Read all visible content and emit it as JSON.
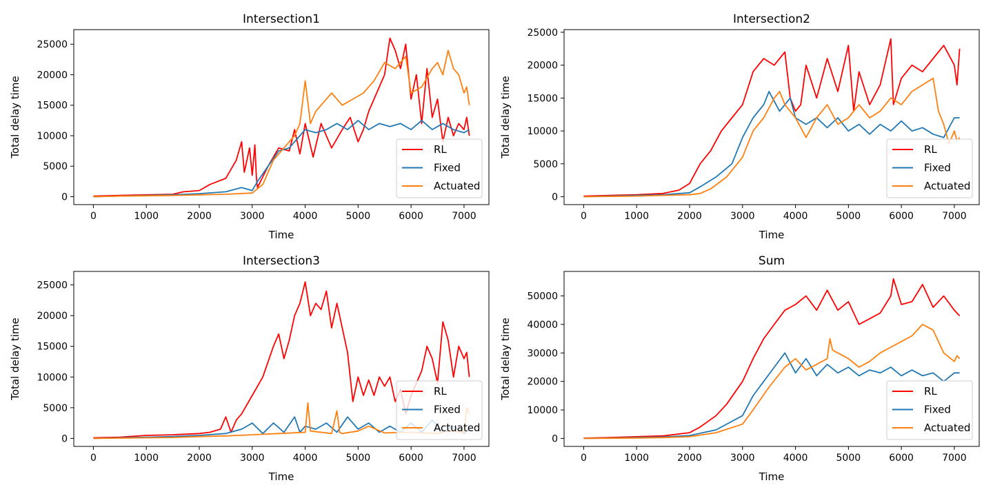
{
  "colors": {
    "RL": "#ff0000",
    "Fixed": "#1f77b4",
    "Actuated": "#ff7f0e"
  },
  "chart_data": [
    {
      "type": "line",
      "title": "Intersection1",
      "xlabel": "Time",
      "ylabel": "Total delay time",
      "xlim": [
        -370,
        7470
      ],
      "ylim": [
        -1300,
        27400
      ],
      "xticks": [
        0,
        1000,
        2000,
        3000,
        4000,
        5000,
        6000,
        7000
      ],
      "yticks": [
        0,
        5000,
        10000,
        15000,
        20000,
        25000
      ],
      "grid": false,
      "legend": "lower-right",
      "series": [
        {
          "name": "RL",
          "color": "#ff0000",
          "x": [
            0,
            500,
            1000,
            1500,
            1700,
            2000,
            2200,
            2500,
            2700,
            2800,
            2850,
            2950,
            3000,
            3050,
            3080,
            3100,
            3300,
            3500,
            3700,
            3800,
            3900,
            4000,
            4150,
            4300,
            4500,
            4700,
            4850,
            5000,
            5100,
            5200,
            5300,
            5500,
            5600,
            5700,
            5800,
            5900,
            6000,
            6100,
            6200,
            6300,
            6400,
            6500,
            6600,
            6700,
            6800,
            6900,
            7000,
            7050,
            7100
          ],
          "y": [
            100,
            200,
            300,
            400,
            800,
            1000,
            2000,
            3000,
            6000,
            9000,
            4000,
            8000,
            3500,
            8500,
            3000,
            1500,
            5000,
            8000,
            7500,
            11000,
            7000,
            12000,
            6500,
            12000,
            8000,
            11000,
            13000,
            9000,
            11000,
            14000,
            16000,
            20000,
            26000,
            24000,
            21000,
            25000,
            16000,
            20000,
            12000,
            21000,
            13000,
            16000,
            9000,
            13000,
            10000,
            12000,
            11000,
            13000,
            10000
          ]
        },
        {
          "name": "Fixed",
          "color": "#1f77b4",
          "x": [
            0,
            500,
            1000,
            1500,
            2000,
            2500,
            2800,
            3000,
            3100,
            3300,
            3500,
            3700,
            3900,
            4000,
            4200,
            4400,
            4600,
            4800,
            5000,
            5200,
            5400,
            5600,
            5800,
            6000,
            6200,
            6400,
            6600,
            6800,
            7000,
            7100
          ],
          "y": [
            0,
            100,
            200,
            300,
            500,
            800,
            1500,
            1000,
            2500,
            5000,
            7500,
            8000,
            10000,
            11000,
            10500,
            11000,
            12000,
            11000,
            12500,
            11000,
            12000,
            11500,
            12000,
            11000,
            12500,
            11000,
            12000,
            11000,
            10500,
            11000
          ]
        },
        {
          "name": "Actuated",
          "color": "#ff7f0e",
          "x": [
            0,
            500,
            1000,
            1500,
            2000,
            2500,
            3000,
            3200,
            3400,
            3600,
            3800,
            3900,
            4000,
            4100,
            4200,
            4300,
            4500,
            4700,
            4900,
            5100,
            5300,
            5500,
            5700,
            5900,
            6000,
            6200,
            6400,
            6500,
            6600,
            6700,
            6800,
            6900,
            7000,
            7050,
            7100
          ],
          "y": [
            0,
            100,
            150,
            200,
            300,
            400,
            600,
            2000,
            6000,
            8000,
            10000,
            12000,
            19000,
            12000,
            14000,
            15000,
            17000,
            15000,
            16000,
            17000,
            19000,
            22000,
            21000,
            23000,
            17000,
            18000,
            21000,
            22000,
            20000,
            24000,
            21000,
            20000,
            17000,
            18000,
            15000
          ]
        }
      ]
    },
    {
      "type": "line",
      "title": "Intersection2",
      "xlabel": "Time",
      "ylabel": "Total delay time",
      "xlim": [
        -370,
        7470
      ],
      "ylim": [
        -1200,
        25400
      ],
      "xticks": [
        0,
        1000,
        2000,
        3000,
        4000,
        5000,
        6000,
        7000
      ],
      "yticks": [
        0,
        5000,
        10000,
        15000,
        20000,
        25000
      ],
      "grid": false,
      "legend": "lower-right",
      "series": [
        {
          "name": "RL",
          "color": "#ff0000",
          "x": [
            0,
            500,
            1000,
            1500,
            1800,
            2000,
            2200,
            2400,
            2600,
            2800,
            3000,
            3200,
            3400,
            3600,
            3800,
            3900,
            4000,
            4100,
            4200,
            4400,
            4600,
            4800,
            5000,
            5100,
            5200,
            5400,
            5600,
            5800,
            5850,
            6000,
            6200,
            6400,
            6600,
            6800,
            7000,
            7050,
            7100
          ],
          "y": [
            100,
            200,
            300,
            500,
            1000,
            2000,
            5000,
            7000,
            10000,
            12000,
            14000,
            19000,
            21000,
            20000,
            22000,
            15000,
            13000,
            14000,
            20000,
            15000,
            21000,
            16000,
            23000,
            13000,
            19000,
            14000,
            17000,
            24000,
            14000,
            18000,
            20000,
            19000,
            21000,
            23000,
            20000,
            17000,
            22500
          ]
        },
        {
          "name": "Fixed",
          "color": "#1f77b4",
          "x": [
            0,
            500,
            1000,
            1500,
            2000,
            2200,
            2500,
            2800,
            3000,
            3200,
            3400,
            3500,
            3700,
            3900,
            4000,
            4200,
            4400,
            4600,
            4800,
            5000,
            5200,
            5400,
            5600,
            5800,
            6000,
            6200,
            6400,
            6600,
            6800,
            7000,
            7100
          ],
          "y": [
            0,
            100,
            200,
            300,
            600,
            1500,
            3000,
            5000,
            9000,
            12000,
            14000,
            16000,
            13000,
            15000,
            12000,
            11000,
            12000,
            10500,
            12000,
            10000,
            11000,
            9500,
            11000,
            10000,
            11500,
            10000,
            10500,
            9500,
            9000,
            12000,
            12000
          ]
        },
        {
          "name": "Actuated",
          "color": "#ff7f0e",
          "x": [
            0,
            500,
            1000,
            1500,
            2000,
            2200,
            2400,
            2700,
            3000,
            3200,
            3400,
            3600,
            3700,
            3800,
            4000,
            4200,
            4400,
            4600,
            4800,
            5000,
            5200,
            5400,
            5600,
            5800,
            6000,
            6200,
            6400,
            6600,
            6700,
            6800,
            6900,
            7000,
            7050,
            7100
          ],
          "y": [
            0,
            50,
            100,
            200,
            300,
            500,
            1200,
            3000,
            6000,
            10000,
            12000,
            15000,
            16000,
            14000,
            12000,
            9000,
            12000,
            14000,
            11000,
            12000,
            14000,
            12000,
            13000,
            15000,
            14000,
            16000,
            17000,
            18000,
            13000,
            11000,
            8000,
            10000,
            8500,
            9000
          ]
        }
      ]
    },
    {
      "type": "line",
      "title": "Intersection3",
      "xlabel": "Time",
      "ylabel": "Total delay time",
      "xlim": [
        -370,
        7470
      ],
      "ylim": [
        -1300,
        27200
      ],
      "xticks": [
        0,
        1000,
        2000,
        3000,
        4000,
        5000,
        6000,
        7000
      ],
      "yticks": [
        0,
        5000,
        10000,
        15000,
        20000,
        25000
      ],
      "grid": false,
      "legend": "lower-right",
      "series": [
        {
          "name": "RL",
          "color": "#ff0000",
          "x": [
            0,
            500,
            1000,
            1500,
            2000,
            2200,
            2400,
            2500,
            2600,
            2700,
            2800,
            3000,
            3200,
            3400,
            3500,
            3600,
            3700,
            3800,
            3900,
            4000,
            4100,
            4200,
            4300,
            4400,
            4500,
            4600,
            4800,
            4900,
            5000,
            5100,
            5200,
            5300,
            5400,
            5500,
            5600,
            5700,
            5800,
            5900,
            6000,
            6200,
            6300,
            6400,
            6500,
            6600,
            6700,
            6800,
            6900,
            7000,
            7050,
            7100
          ],
          "y": [
            100,
            200,
            500,
            600,
            800,
            1000,
            1500,
            3500,
            1000,
            3000,
            4000,
            7000,
            10000,
            15000,
            17000,
            13000,
            16000,
            20000,
            22000,
            25500,
            20000,
            22000,
            21000,
            24000,
            18000,
            22000,
            14000,
            6000,
            10000,
            7000,
            9500,
            7000,
            10000,
            8500,
            10000,
            6000,
            8000,
            4000,
            7000,
            11000,
            15000,
            13000,
            9000,
            19000,
            16000,
            10000,
            15000,
            13000,
            14000,
            10000
          ]
        },
        {
          "name": "Fixed",
          "color": "#1f77b4",
          "x": [
            0,
            500,
            1000,
            1500,
            2000,
            2500,
            2800,
            3000,
            3200,
            3400,
            3600,
            3800,
            3900,
            4000,
            4200,
            4400,
            4600,
            4800,
            5000,
            5200,
            5400,
            5600,
            5800,
            6000,
            6200,
            6400,
            6600,
            6800,
            7000,
            7100
          ],
          "y": [
            0,
            100,
            200,
            300,
            500,
            800,
            1500,
            2500,
            800,
            2500,
            1000,
            3500,
            1000,
            2000,
            1500,
            2500,
            1000,
            3500,
            1500,
            2500,
            1000,
            2000,
            1000,
            2500,
            1000,
            3000,
            1000,
            2000,
            800,
            1500
          ]
        },
        {
          "name": "Actuated",
          "color": "#ff7f0e",
          "x": [
            0,
            500,
            1000,
            1500,
            2000,
            2500,
            3000,
            3500,
            4000,
            4050,
            4100,
            4500,
            4600,
            4650,
            4700,
            5000,
            5200,
            5500,
            6000,
            6500,
            6700,
            7000,
            7050,
            7100
          ],
          "y": [
            0,
            50,
            100,
            150,
            300,
            400,
            600,
            800,
            1000,
            5800,
            1200,
            800,
            4500,
            1000,
            800,
            1200,
            2000,
            900,
            1000,
            800,
            1200,
            1000,
            5000,
            4000
          ]
        }
      ]
    },
    {
      "type": "line",
      "title": "Sum",
      "xlabel": "Time",
      "ylabel": "Total delay time",
      "xlim": [
        -370,
        7470
      ],
      "ylim": [
        -2800,
        58600
      ],
      "xticks": [
        0,
        1000,
        2000,
        3000,
        4000,
        5000,
        6000,
        7000
      ],
      "yticks": [
        0,
        10000,
        20000,
        30000,
        40000,
        50000
      ],
      "grid": false,
      "legend": "lower-right",
      "series": [
        {
          "name": "RL",
          "color": "#ff0000",
          "x": [
            0,
            500,
            1000,
            1500,
            2000,
            2200,
            2500,
            2700,
            3000,
            3200,
            3400,
            3600,
            3800,
            4000,
            4200,
            4400,
            4600,
            4800,
            5000,
            5200,
            5400,
            5600,
            5800,
            5850,
            6000,
            6200,
            6400,
            6600,
            6800,
            7000,
            7100
          ],
          "y": [
            100,
            300,
            600,
            900,
            2000,
            4000,
            8000,
            12000,
            20000,
            28000,
            35000,
            40000,
            45000,
            47000,
            50000,
            45000,
            52000,
            45000,
            48000,
            40000,
            42000,
            44000,
            50000,
            56000,
            47000,
            48000,
            54000,
            46000,
            50000,
            45000,
            43000
          ]
        },
        {
          "name": "Fixed",
          "color": "#1f77b4",
          "x": [
            0,
            500,
            1000,
            1500,
            2000,
            2500,
            3000,
            3200,
            3400,
            3600,
            3800,
            4000,
            4200,
            4400,
            4600,
            4800,
            5000,
            5200,
            5400,
            5600,
            5800,
            6000,
            6200,
            6400,
            6600,
            6800,
            7000,
            7100
          ],
          "y": [
            0,
            100,
            300,
            500,
            1000,
            3000,
            8000,
            15000,
            20000,
            25000,
            30000,
            23000,
            28000,
            22000,
            26000,
            23000,
            25000,
            22000,
            24000,
            23000,
            25000,
            22000,
            24000,
            22000,
            23000,
            20000,
            23000,
            23000
          ]
        },
        {
          "name": "Actuated",
          "color": "#ff7f0e",
          "x": [
            0,
            500,
            1000,
            1500,
            2000,
            2500,
            3000,
            3200,
            3500,
            3800,
            4000,
            4200,
            4400,
            4600,
            4650,
            4700,
            4800,
            5000,
            5200,
            5400,
            5600,
            5800,
            6000,
            6200,
            6400,
            6600,
            6800,
            7000,
            7050,
            7100
          ],
          "y": [
            0,
            50,
            150,
            300,
            600,
            2000,
            5000,
            10000,
            18000,
            25000,
            28000,
            24000,
            26000,
            28000,
            35000,
            31000,
            30000,
            28000,
            25000,
            27000,
            30000,
            32000,
            34000,
            36000,
            40000,
            38000,
            30000,
            27000,
            29000,
            28000
          ]
        }
      ]
    }
  ]
}
